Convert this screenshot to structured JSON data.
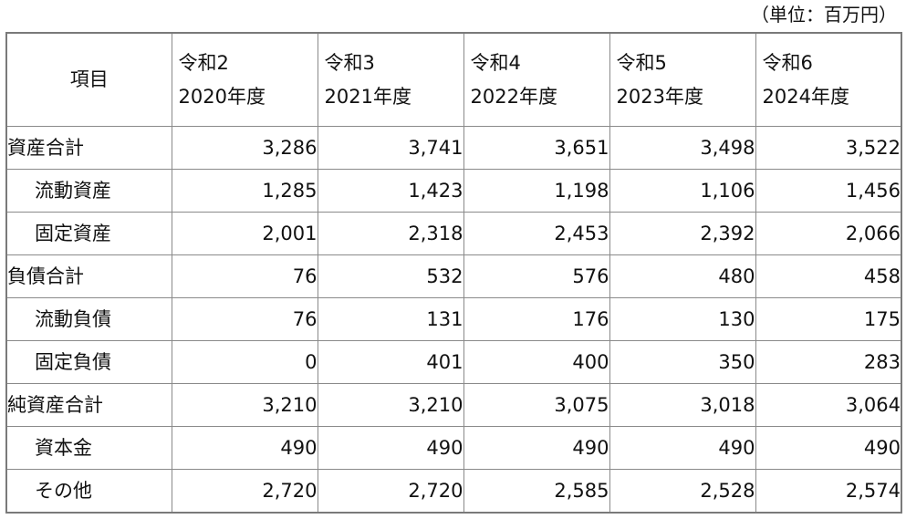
{
  "unit_note": "（単位：百万円）",
  "table": {
    "header_item": "項目",
    "years": [
      {
        "era": "令和2",
        "year": "2020年度"
      },
      {
        "era": "令和3",
        "year": "2021年度"
      },
      {
        "era": "令和4",
        "year": "2022年度"
      },
      {
        "era": "令和5",
        "year": "2023年度"
      },
      {
        "era": "令和6",
        "year": "2024年度"
      }
    ],
    "rows": [
      {
        "label": "資産合計",
        "values": [
          "3,286",
          "3,741",
          "3,651",
          "3,498",
          "3,522"
        ]
      },
      {
        "label": "流動資産",
        "values": [
          "1,285",
          "1,423",
          "1,198",
          "1,106",
          "1,456"
        ]
      },
      {
        "label": "固定資産",
        "values": [
          "2,001",
          "2,318",
          "2,453",
          "2,392",
          "2,066"
        ]
      },
      {
        "label": "負債合計",
        "values": [
          "76",
          "532",
          "576",
          "480",
          "458"
        ]
      },
      {
        "label": "流動負債",
        "values": [
          "76",
          "131",
          "176",
          "130",
          "175"
        ]
      },
      {
        "label": "固定負債",
        "values": [
          "0",
          "401",
          "400",
          "350",
          "283"
        ]
      },
      {
        "label": "純資産合計",
        "values": [
          "3,210",
          "3,210",
          "3,075",
          "3,018",
          "3,064"
        ]
      },
      {
        "label": "資本金",
        "values": [
          "490",
          "490",
          "490",
          "490",
          "490"
        ]
      },
      {
        "label": "その他",
        "values": [
          "2,720",
          "2,720",
          "2,585",
          "2,528",
          "2,574"
        ]
      }
    ]
  }
}
